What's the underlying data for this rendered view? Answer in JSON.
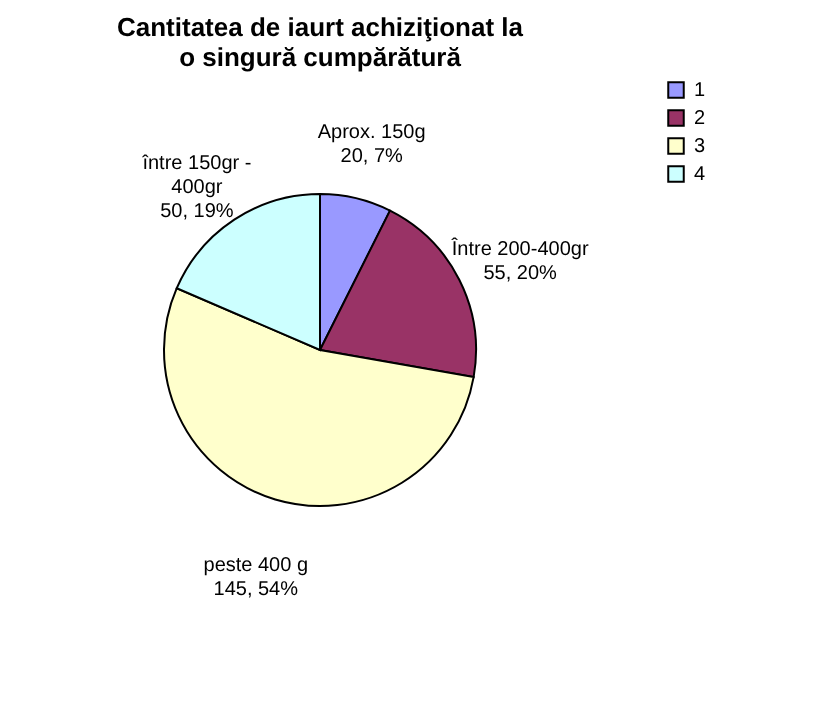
{
  "chart_data": {
    "type": "pie",
    "title": "Cantitatea de iaurt achiziţionat la o singură cumpărătură",
    "categories": [
      "1",
      "2",
      "3",
      "4"
    ],
    "values": [
      20,
      55,
      145,
      50
    ],
    "colors": [
      "#9999ff",
      "#993366",
      "#ffffcc",
      "#ccffff"
    ],
    "value_labels": [
      "Aprox. 150g\n20, 7%",
      "Între 200-400gr\n55, 20%",
      "peste 400 g\n145, 54%",
      "între 150gr -\n400gr\n50, 19%"
    ],
    "legend": "right"
  }
}
